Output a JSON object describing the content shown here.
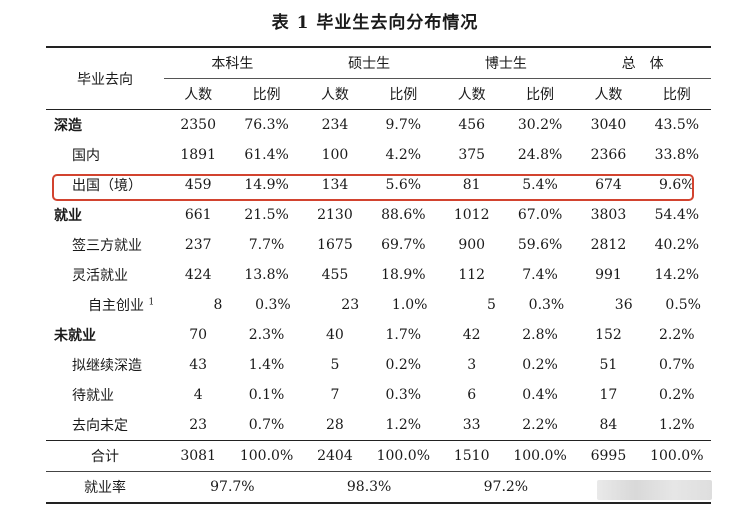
{
  "title": "表 1 毕业生去向分布情况",
  "header": {
    "row_label": "毕业去向",
    "groups": [
      "本科生",
      "硕士生",
      "博士生",
      "总　体"
    ],
    "sub": [
      "人数",
      "比例"
    ]
  },
  "rows": [
    {
      "label": "深造",
      "level": 1,
      "cells": [
        "2350",
        "76.3%",
        "234",
        "9.7%",
        "456",
        "30.2%",
        "3040",
        "43.5%"
      ]
    },
    {
      "label": "国内",
      "level": 2,
      "cells": [
        "1891",
        "61.4%",
        "100",
        "4.2%",
        "375",
        "24.8%",
        "2366",
        "33.8%"
      ]
    },
    {
      "label": "出国（境）",
      "level": 2,
      "cells": [
        "459",
        "14.9%",
        "134",
        "5.6%",
        "81",
        "5.4%",
        "674",
        "9.6%"
      ]
    },
    {
      "label": "就业",
      "level": 1,
      "cells": [
        "661",
        "21.5%",
        "2130",
        "88.6%",
        "1012",
        "67.0%",
        "3803",
        "54.4%"
      ]
    },
    {
      "label": "签三方就业",
      "level": 2,
      "cells": [
        "237",
        "7.7%",
        "1675",
        "69.7%",
        "900",
        "59.6%",
        "2812",
        "40.2%"
      ]
    },
    {
      "label": "灵活就业",
      "level": 2,
      "cells": [
        "424",
        "13.8%",
        "455",
        "18.9%",
        "112",
        "7.4%",
        "991",
        "14.2%"
      ]
    },
    {
      "label": "自主创业",
      "level": 3,
      "note": "1",
      "cells": [
        "8",
        "0.3%",
        "23",
        "1.0%",
        "5",
        "0.3%",
        "36",
        "0.5%"
      ]
    },
    {
      "label": "未就业",
      "level": 1,
      "cells": [
        "70",
        "2.3%",
        "40",
        "1.7%",
        "42",
        "2.8%",
        "152",
        "2.2%"
      ]
    },
    {
      "label": "拟继续深造",
      "level": 2,
      "cells": [
        "43",
        "1.4%",
        "5",
        "0.2%",
        "3",
        "0.2%",
        "51",
        "0.7%"
      ]
    },
    {
      "label": "待就业",
      "level": 2,
      "cells": [
        "4",
        "0.1%",
        "7",
        "0.3%",
        "6",
        "0.4%",
        "17",
        "0.2%"
      ]
    },
    {
      "label": "去向未定",
      "level": 2,
      "cells": [
        "23",
        "0.7%",
        "28",
        "1.2%",
        "33",
        "2.2%",
        "84",
        "1.2%"
      ]
    }
  ],
  "total": {
    "label": "合计",
    "cells": [
      "3081",
      "100.0%",
      "2404",
      "100.0%",
      "1510",
      "100.0%",
      "6995",
      "100.0%"
    ]
  },
  "rate": {
    "label": "就业率",
    "cells": [
      "97.7%",
      "98.3%",
      "97.2%"
    ]
  },
  "highlight_color": "#d2432f"
}
